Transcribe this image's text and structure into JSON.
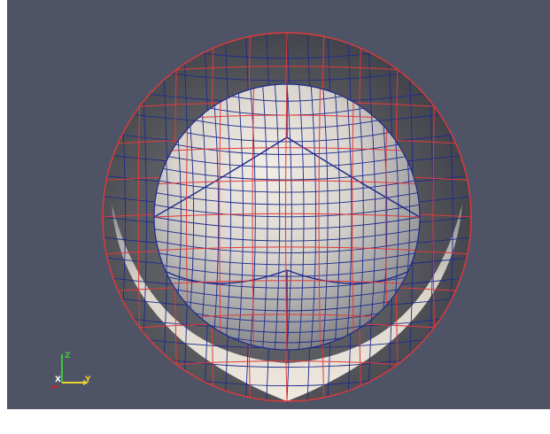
{
  "viewport": {
    "background_color": "#4f5366",
    "mesh_colors": {
      "outer_wire": "#e03a3a",
      "inner_wire": "#1c2a8c",
      "surface_light": "#ece6dc",
      "surface_mid": "#b8b6b4",
      "surface_dark": "#77787b"
    }
  },
  "orientation_axes": {
    "z_label": "Z",
    "x_label": "X",
    "y_label": "Y",
    "z_color": "#3cc43c",
    "y_color": "#e8d42a",
    "x_color": "#c81e1e"
  }
}
